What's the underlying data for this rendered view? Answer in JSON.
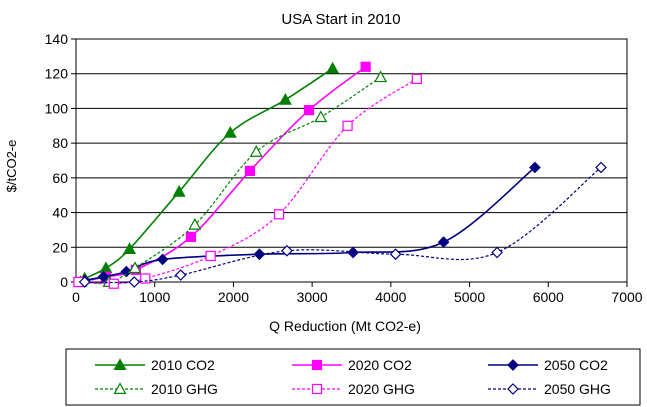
{
  "chart_data": {
    "type": "line",
    "title": "USA Start in 2010",
    "xlabel": "Q Reduction (Mt CO2-e)",
    "ylabel": "$/tCO2-e",
    "xlim": [
      0,
      7000
    ],
    "ylim": [
      0,
      140
    ],
    "xticks": [
      0,
      1000,
      2000,
      3000,
      4000,
      5000,
      6000,
      7000
    ],
    "yticks": [
      0,
      20,
      40,
      60,
      80,
      100,
      120,
      140
    ],
    "grid": "horizontal",
    "legend_position": "bottom",
    "series": [
      {
        "name": "2010 CO2",
        "color": "#008000",
        "dash": "solid",
        "marker": "triangle",
        "filled": true,
        "points": [
          [
            110,
            2
          ],
          [
            380,
            8
          ],
          [
            680,
            19
          ],
          [
            1310,
            52
          ],
          [
            1960,
            86
          ],
          [
            2660,
            105
          ],
          [
            3260,
            123
          ]
        ]
      },
      {
        "name": "2020 CO2",
        "color": "#ff00ff",
        "dash": "solid",
        "marker": "square",
        "filled": true,
        "points": [
          [
            50,
            0
          ],
          [
            380,
            3
          ],
          [
            760,
            7
          ],
          [
            1460,
            26
          ],
          [
            2210,
            64
          ],
          [
            2960,
            99
          ],
          [
            3680,
            124
          ]
        ]
      },
      {
        "name": "2050 CO2",
        "color": "#000080",
        "dash": "solid",
        "marker": "diamond",
        "filled": true,
        "points": [
          [
            110,
            1
          ],
          [
            350,
            3
          ],
          [
            640,
            6
          ],
          [
            1100,
            13
          ],
          [
            2330,
            16
          ],
          [
            3520,
            17
          ],
          [
            4670,
            23
          ],
          [
            5830,
            66
          ]
        ]
      },
      {
        "name": "2010 GHG",
        "color": "#008000",
        "dash": "dashed",
        "marker": "triangle",
        "filled": false,
        "points": [
          [
            60,
            0
          ],
          [
            420,
            0
          ],
          [
            750,
            8
          ],
          [
            1510,
            33
          ],
          [
            2290,
            75
          ],
          [
            3110,
            95
          ],
          [
            3870,
            118
          ]
        ]
      },
      {
        "name": "2020 GHG",
        "color": "#ff00ff",
        "dash": "dashed",
        "marker": "square",
        "filled": false,
        "points": [
          [
            30,
            0
          ],
          [
            480,
            -1
          ],
          [
            880,
            2
          ],
          [
            1710,
            15
          ],
          [
            2580,
            39
          ],
          [
            3450,
            90
          ],
          [
            4330,
            117
          ]
        ]
      },
      {
        "name": "2050 GHG",
        "color": "#000080",
        "dash": "dashed",
        "marker": "diamond",
        "filled": false,
        "points": [
          [
            110,
            0
          ],
          [
            740,
            0
          ],
          [
            1330,
            4
          ],
          [
            2680,
            18
          ],
          [
            4060,
            16
          ],
          [
            5350,
            17
          ],
          [
            6670,
            66
          ]
        ]
      }
    ]
  }
}
